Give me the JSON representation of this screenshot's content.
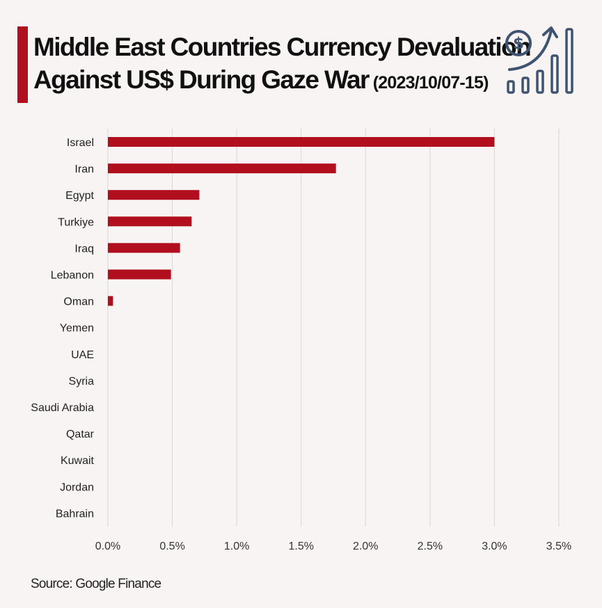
{
  "header": {
    "title_line1": "Middle East Countries Currency Devaluation",
    "title_line2": "Against US$ During Gaze War",
    "date_range": "(2023/10/07-15)",
    "icon": "finance-growth-icon"
  },
  "colors": {
    "accent": "#b10f1d",
    "bar": "#b10f1d",
    "icon_stroke": "#3f5470",
    "grid": "#d9d5d4"
  },
  "chart_data": {
    "type": "bar",
    "orientation": "horizontal",
    "title": "Middle East Countries Currency Devaluation Against US$ During Gaze War (2023/10/07-15)",
    "xlabel": "",
    "ylabel": "",
    "categories": [
      "Israel",
      "Iran",
      "Egypt",
      "Turkiye",
      "Iraq",
      "Lebanon",
      "Oman",
      "Yemen",
      "UAE",
      "Syria",
      "Saudi Arabia",
      "Qatar",
      "Kuwait",
      "Jordan",
      "Bahrain"
    ],
    "values": [
      3.0,
      1.77,
      0.71,
      0.65,
      0.56,
      0.49,
      0.04,
      0,
      0,
      0,
      0,
      0,
      0,
      0,
      0
    ],
    "value_unit": "%",
    "xlim": [
      0,
      3.5
    ],
    "xticks": [
      0,
      0.5,
      1.0,
      1.5,
      2.0,
      2.5,
      3.0,
      3.5
    ],
    "xtick_labels": [
      "0.0%",
      "0.5%",
      "1.0%",
      "1.5%",
      "2.0%",
      "2.5%",
      "3.0%",
      "3.5%"
    ],
    "grid": "vertical",
    "legend": "none"
  },
  "footer": {
    "source": "Source: Google Finance"
  }
}
